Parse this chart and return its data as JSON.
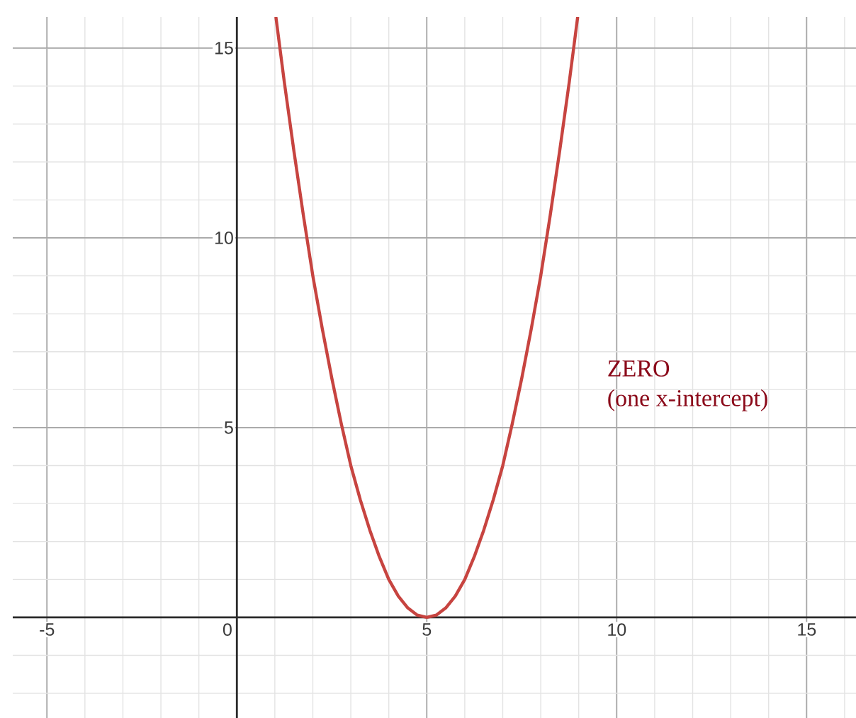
{
  "chart_data": {
    "type": "line",
    "x": [
      1.03,
      1.25,
      1.5,
      1.75,
      2,
      2.25,
      2.5,
      2.75,
      3,
      3.25,
      3.5,
      3.75,
      4,
      4.25,
      4.5,
      4.75,
      5,
      5.25,
      5.5,
      5.75,
      6,
      6.25,
      6.5,
      6.75,
      7,
      7.25,
      7.5,
      7.75,
      8,
      8.25,
      8.5,
      8.75,
      8.97
    ],
    "values": [
      15.8,
      14.1,
      12.3,
      10.6,
      9,
      7.6,
      6.3,
      5.1,
      4,
      3.1,
      2.3,
      1.6,
      1,
      0.56,
      0.25,
      0.06,
      0,
      0.06,
      0.25,
      0.56,
      1,
      1.6,
      2.3,
      3.1,
      4,
      5.1,
      6.3,
      7.6,
      9,
      10.6,
      12.3,
      14.1,
      15.8
    ],
    "color": "#c74440",
    "xlim": [
      -5.9,
      16.3
    ],
    "ylim": [
      -2.65,
      15.82
    ],
    "xticks": [
      -5,
      0,
      5,
      10,
      15
    ],
    "yticks": [
      5,
      10,
      15
    ],
    "grid": true,
    "annotations": [
      "ZERO",
      "(one x-intercept)"
    ]
  }
}
